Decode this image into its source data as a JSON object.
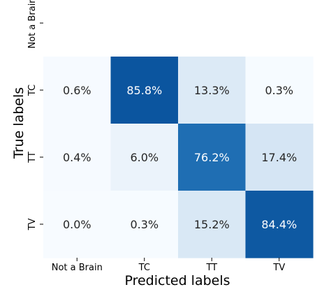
{
  "chart_data": {
    "type": "heatmap",
    "xlabel": "Predicted labels",
    "ylabel": "True labels",
    "x_categories": [
      "Not a Brain",
      "TC",
      "TT",
      "TV"
    ],
    "y_categories": [
      "Not a Brain",
      "TC",
      "TT",
      "TV"
    ],
    "colormap": "Blues",
    "color_range": [
      0,
      100
    ],
    "value_format": "percent",
    "rows": [
      {
        "label": "Not a Brain",
        "values": [
          null,
          null,
          null,
          null
        ]
      },
      {
        "label": "TC",
        "values": [
          0.6,
          85.8,
          13.3,
          0.3
        ]
      },
      {
        "label": "TT",
        "values": [
          0.4,
          6.0,
          76.2,
          17.4
        ]
      },
      {
        "label": "TV",
        "values": [
          0.0,
          0.3,
          15.2,
          84.4
        ]
      }
    ]
  }
}
